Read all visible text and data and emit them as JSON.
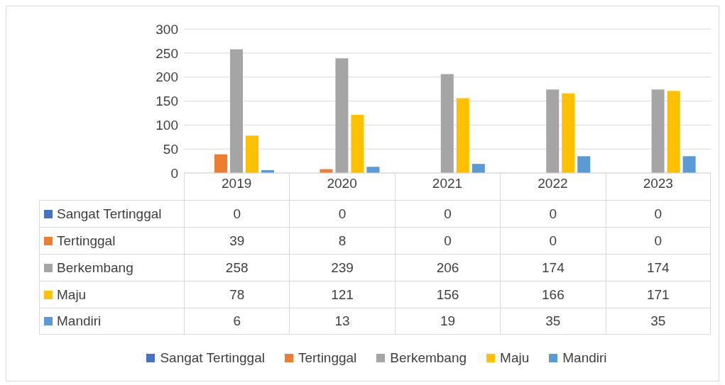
{
  "chart_data": {
    "type": "bar",
    "categories": [
      "2019",
      "2020",
      "2021",
      "2022",
      "2023"
    ],
    "series": [
      {
        "name": "Sangat Tertinggal",
        "color": "#4472c4",
        "values": [
          0,
          0,
          0,
          0,
          0
        ]
      },
      {
        "name": "Tertinggal",
        "color": "#ed7d31",
        "values": [
          39,
          8,
          0,
          0,
          0
        ]
      },
      {
        "name": "Berkembang",
        "color": "#a5a5a5",
        "values": [
          258,
          239,
          206,
          174,
          174
        ]
      },
      {
        "name": "Maju",
        "color": "#ffc000",
        "values": [
          78,
          121,
          156,
          166,
          171
        ]
      },
      {
        "name": "Mandiri",
        "color": "#5b9bd5",
        "values": [
          6,
          13,
          19,
          35,
          35
        ]
      }
    ],
    "ylim": [
      0,
      300
    ],
    "yticks": [
      0,
      50,
      100,
      150,
      200,
      250,
      300
    ],
    "grid": "y",
    "legend": "bottom",
    "data_labels": true
  }
}
